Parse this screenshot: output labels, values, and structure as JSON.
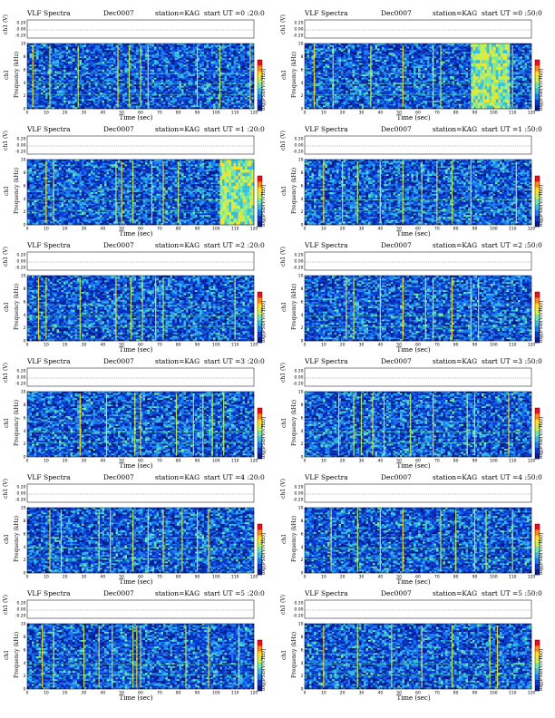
{
  "page": {
    "header_title": "VLF Spectra",
    "station": "station=KAG"
  },
  "axes": {
    "channel_label": "ch1 (V)",
    "frequency_label_top": "ch1",
    "frequency_label_bottom": "Frequency (kHz)",
    "colorbar_label": "log[PSD(V/√Hz)]",
    "time_label": "Time (sec)"
  },
  "colormap": [
    "#081d8c",
    "#0a3ad1",
    "#1a7ef2",
    "#38bde0",
    "#6ee6b0",
    "#c8f050",
    "#ffe020",
    "#ff8a10",
    "#e8101a",
    "#ffffff"
  ],
  "chart_data": [
    {
      "type": "heatmap",
      "title": "VLF Spectra",
      "date": "Dec0007",
      "station": "station=KAG",
      "start": "start UT =0 :20:0",
      "xlabel": "Time (sec)",
      "xlim": [
        0,
        120
      ],
      "x_ticks": [
        "0",
        "10",
        "20",
        "30",
        "40",
        "50",
        "60",
        "70",
        "80",
        "90",
        "100",
        "110",
        "120"
      ],
      "ylim": [
        0,
        10
      ],
      "y_ticks": [
        "0",
        "2",
        "4",
        "6",
        "8",
        "10"
      ],
      "ch_ticks": [
        "0.20",
        "0.00",
        "-0.20"
      ],
      "bursts_sec": [
        3,
        12,
        27,
        48,
        54,
        60,
        64,
        90,
        102,
        118
      ],
      "hot_region": null
    },
    {
      "type": "heatmap",
      "title": "VLF Spectra",
      "date": "Dec0007",
      "station": "station=KAG",
      "start": "start UT =0 :50:0",
      "xlabel": "Time (sec)",
      "xlim": [
        0,
        120
      ],
      "x_ticks": [
        "0",
        "10",
        "20",
        "30",
        "40",
        "50",
        "60",
        "70",
        "80",
        "90",
        "100",
        "110",
        "120"
      ],
      "ylim": [
        0,
        10
      ],
      "y_ticks": [
        "0",
        "2",
        "4",
        "6",
        "8",
        "10"
      ],
      "ch_ticks": [
        "0.20",
        "0.00",
        "-0.20"
      ],
      "bursts_sec": [
        5,
        15,
        35,
        52,
        68,
        72,
        95,
        100,
        110
      ],
      "hot_region": [
        88,
        108
      ]
    },
    {
      "type": "heatmap",
      "title": "VLF Spectra",
      "date": "Dec0007",
      "station": "station=KAG",
      "start": "start UT =1 :20:0",
      "xlabel": "Time (sec)",
      "xlim": [
        0,
        120
      ],
      "x_ticks": [
        "0",
        "10",
        "20",
        "30",
        "40",
        "50",
        "60",
        "70",
        "80",
        "90",
        "100",
        "110",
        "120"
      ],
      "ylim": [
        0,
        10
      ],
      "y_ticks": [
        "0",
        "2",
        "4",
        "6",
        "8",
        "10"
      ],
      "ch_ticks": [
        "0.20",
        "0.00",
        "-0.20"
      ],
      "bursts_sec": [
        10,
        14,
        47,
        50,
        56,
        66,
        72,
        80
      ],
      "hot_region": [
        102,
        120
      ]
    },
    {
      "type": "heatmap",
      "title": "VLF Spectra",
      "date": "Dec0007",
      "station": "station=KAG",
      "start": "start UT =1 :50:0",
      "xlabel": "Time (sec)",
      "xlim": [
        0,
        120
      ],
      "x_ticks": [
        "0",
        "10",
        "20",
        "30",
        "40",
        "50",
        "60",
        "70",
        "80",
        "90",
        "100",
        "110",
        "120"
      ],
      "ylim": [
        0,
        10
      ],
      "y_ticks": [
        "0",
        "2",
        "4",
        "6",
        "8",
        "10"
      ],
      "ch_ticks": [
        "0.20",
        "0.00",
        "-0.20"
      ],
      "bursts_sec": [
        10,
        20,
        28,
        40,
        52,
        62,
        70,
        78,
        88,
        112
      ],
      "hot_region": null
    },
    {
      "type": "heatmap",
      "title": "VLF Spectra",
      "date": "Dec0007",
      "station": "station=KAG",
      "start": "start UT =2 :20:0",
      "xlabel": "Time (sec)",
      "xlim": [
        0,
        120
      ],
      "x_ticks": [
        "0",
        "10",
        "20",
        "30",
        "40",
        "50",
        "60",
        "70",
        "80",
        "90",
        "100",
        "110",
        "120"
      ],
      "ylim": [
        0,
        10
      ],
      "y_ticks": [
        "0",
        "2",
        "4",
        "6",
        "8",
        "10"
      ],
      "ch_ticks": [
        "0.20",
        "0.00",
        "-0.20"
      ],
      "bursts_sec": [
        6,
        10,
        28,
        47,
        55,
        61,
        68,
        72,
        110
      ],
      "hot_region": null
    },
    {
      "type": "heatmap",
      "title": "VLF Spectra",
      "date": "Dec0007",
      "station": "station=KAG",
      "start": "start UT =2 :50:0",
      "xlabel": "Time (sec)",
      "xlim": [
        0,
        120
      ],
      "x_ticks": [
        "0",
        "10",
        "20",
        "30",
        "40",
        "50",
        "60",
        "70",
        "80",
        "90",
        "100",
        "110",
        "120"
      ],
      "ylim": [
        0,
        10
      ],
      "y_ticks": [
        "0",
        "2",
        "4",
        "6",
        "8",
        "10"
      ],
      "ch_ticks": [
        "0.20",
        "0.00",
        "-0.20"
      ],
      "bursts_sec": [
        22,
        26,
        40,
        52,
        64,
        68,
        78,
        88,
        92
      ],
      "hot_region": null
    },
    {
      "type": "heatmap",
      "title": "VLF Spectra",
      "date": "Dec0007",
      "station": "station=KAG",
      "start": "start UT =3 :20:0",
      "xlabel": "Time (sec)",
      "xlim": [
        0,
        120
      ],
      "x_ticks": [
        "0",
        "10",
        "20",
        "30",
        "40",
        "50",
        "60",
        "70",
        "80",
        "90",
        "100",
        "110",
        "120"
      ],
      "ylim": [
        0,
        10
      ],
      "y_ticks": [
        "0",
        "2",
        "4",
        "6",
        "8",
        "10"
      ],
      "ch_ticks": [
        "0.20",
        "0.00",
        "-0.20"
      ],
      "bursts_sec": [
        28,
        42,
        57,
        60,
        79,
        88,
        93,
        98,
        104
      ],
      "hot_region": null
    },
    {
      "type": "heatmap",
      "title": "VLF Spectra",
      "date": "Dec0007",
      "station": "station=KAG",
      "start": "start UT =3 :50:0",
      "xlabel": "Time (sec)",
      "xlim": [
        0,
        120
      ],
      "x_ticks": [
        "0",
        "10",
        "20",
        "30",
        "40",
        "50",
        "60",
        "70",
        "80",
        "90",
        "100",
        "110",
        "120"
      ],
      "ylim": [
        0,
        10
      ],
      "y_ticks": [
        "0",
        "2",
        "4",
        "6",
        "8",
        "10"
      ],
      "ch_ticks": [
        "0.20",
        "0.00",
        "-0.20"
      ],
      "bursts_sec": [
        18,
        26,
        30,
        36,
        42,
        56,
        68,
        86,
        90,
        108
      ],
      "hot_region": null
    },
    {
      "type": "heatmap",
      "title": "VLF Spectra",
      "date": "Dec0007",
      "station": "station=KAG",
      "start": "start UT =4 :20:0",
      "xlabel": "Time (sec)",
      "xlim": [
        0,
        120
      ],
      "x_ticks": [
        "0",
        "10",
        "20",
        "30",
        "40",
        "50",
        "60",
        "70",
        "80",
        "90",
        "100",
        "110",
        "120"
      ],
      "ylim": [
        0,
        10
      ],
      "y_ticks": [
        "0",
        "2",
        "4",
        "6",
        "8",
        "10"
      ],
      "ch_ticks": [
        "0.20",
        "0.00",
        "-0.20"
      ],
      "bursts_sec": [
        12,
        18,
        38,
        44,
        56,
        64,
        72,
        82,
        90,
        96
      ],
      "hot_region": null
    },
    {
      "type": "heatmap",
      "title": "VLF Spectra",
      "date": "Dec0007",
      "station": "station=KAG",
      "start": "start UT =4 :50:0",
      "xlabel": "Time (sec)",
      "xlim": [
        0,
        120
      ],
      "x_ticks": [
        "0",
        "10",
        "20",
        "30",
        "40",
        "50",
        "60",
        "70",
        "80",
        "90",
        "100",
        "110",
        "120"
      ],
      "ylim": [
        0,
        10
      ],
      "y_ticks": [
        "0",
        "2",
        "4",
        "6",
        "8",
        "10"
      ],
      "ch_ticks": [
        "0.20",
        "0.00",
        "-0.20"
      ],
      "bursts_sec": [
        14,
        28,
        40,
        52,
        72,
        80,
        90,
        96,
        110
      ],
      "hot_region": null
    },
    {
      "type": "heatmap",
      "title": "VLF Spectra",
      "date": "Dec0007",
      "station": "station=KAG",
      "start": "start UT =5 :20:0",
      "xlabel": "Time (sec)",
      "xlim": [
        0,
        120
      ],
      "x_ticks": [
        "0",
        "10",
        "20",
        "30",
        "40",
        "50",
        "60",
        "70",
        "80",
        "90",
        "100",
        "110",
        "120"
      ],
      "ylim": [
        0,
        10
      ],
      "y_ticks": [
        "0",
        "2",
        "4",
        "6",
        "8",
        "10"
      ],
      "ch_ticks": [
        "0.20",
        "0.00",
        "-0.20"
      ],
      "bursts_sec": [
        8,
        14,
        30,
        38,
        45,
        56,
        58,
        60,
        84,
        96,
        112
      ],
      "hot_region": null
    },
    {
      "type": "heatmap",
      "title": "VLF Spectra",
      "date": "Dec0007",
      "station": "station=KAG",
      "start": "start UT =5 :50:0",
      "xlabel": "Time (sec)",
      "xlim": [
        0,
        120
      ],
      "x_ticks": [
        "0",
        "10",
        "20",
        "30",
        "40",
        "50",
        "60",
        "70",
        "80",
        "90",
        "100",
        "110",
        "120"
      ],
      "ylim": [
        0,
        10
      ],
      "y_ticks": [
        "0",
        "2",
        "4",
        "6",
        "8",
        "10"
      ],
      "ch_ticks": [
        "0.20",
        "0.00",
        "-0.20"
      ],
      "bursts_sec": [
        10,
        28,
        46,
        62,
        78,
        98,
        102
      ],
      "hot_region": null
    }
  ]
}
